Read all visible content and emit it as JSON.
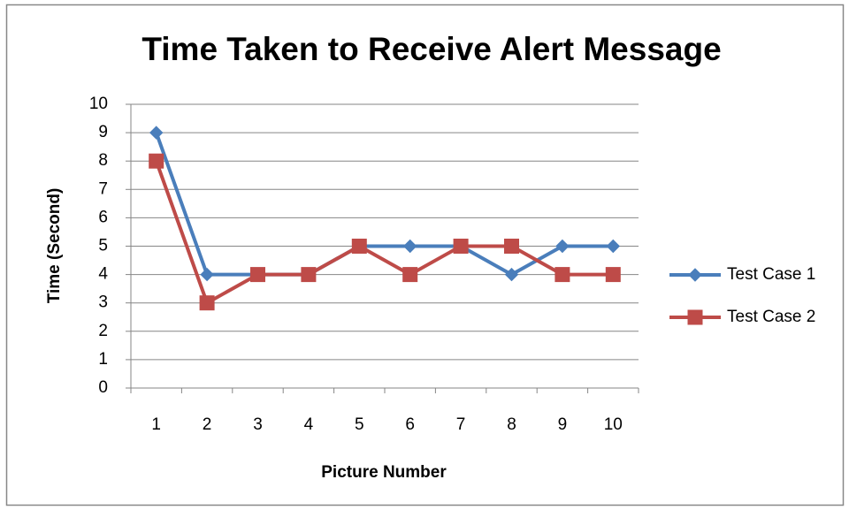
{
  "chart_data": {
    "type": "line",
    "title": "Time Taken to Receive Alert Message",
    "x_label": "Picture Number",
    "y_label": "Time (Second)",
    "categories": [
      "1",
      "2",
      "3",
      "4",
      "5",
      "6",
      "7",
      "8",
      "9",
      "10"
    ],
    "series": [
      {
        "name": "Test Case 1",
        "color": "#4a7ebb",
        "marker": "diamond",
        "values": [
          9,
          4,
          4,
          4,
          5,
          5,
          5,
          4,
          5,
          5
        ]
      },
      {
        "name": "Test Case 2",
        "color": "#be4b48",
        "marker": "square",
        "values": [
          8,
          3,
          4,
          4,
          5,
          4,
          5,
          5,
          4,
          4
        ]
      }
    ],
    "ylim": [
      0,
      10
    ],
    "yticks": [
      0,
      1,
      2,
      3,
      4,
      5,
      6,
      7,
      8,
      9,
      10
    ],
    "grid": true,
    "legend": "right"
  }
}
